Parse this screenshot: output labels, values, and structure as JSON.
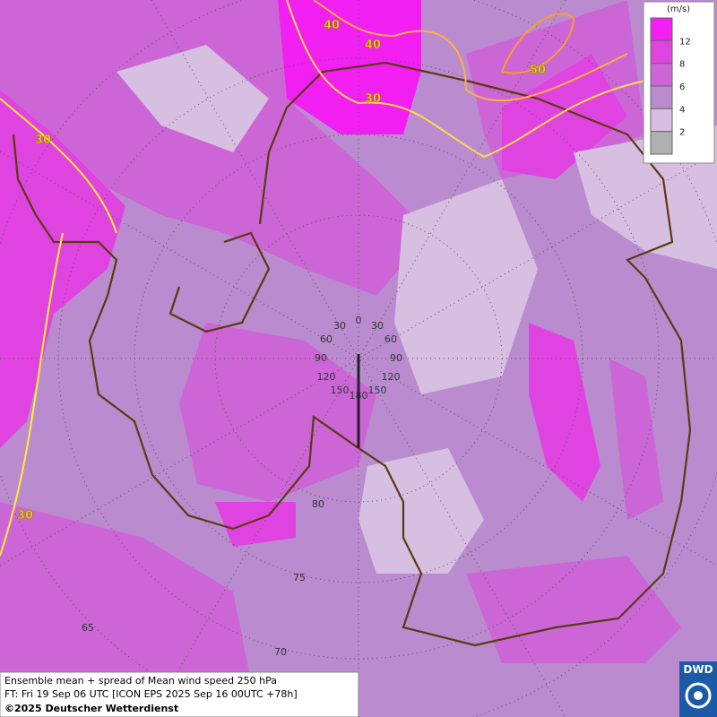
{
  "legend": {
    "unit": "(m/s)",
    "top_color": "#f21ff2",
    "levels": [
      {
        "value": 12,
        "color": "#e044e0"
      },
      {
        "value": 8,
        "color": "#cc66d6"
      },
      {
        "value": 6,
        "color": "#bb8bd0"
      },
      {
        "value": 4,
        "color": "#d6bfe0"
      },
      {
        "value": 2,
        "color": "#b0b0b0"
      }
    ]
  },
  "contour_labels": [
    40,
    40,
    50,
    30,
    30,
    30
  ],
  "latitude_labels": [
    80,
    75,
    70,
    65
  ],
  "longitude_labels": [
    0,
    30,
    30,
    60,
    60,
    90,
    90,
    120,
    120,
    150,
    150,
    180
  ],
  "footer": {
    "line1": "Ensemble mean + spread of Mean wind speed 250 hPa",
    "line2": "FT: Fri 19 Sep 06 UTC [ICON EPS 2025 Sep 16 00UTC +78h]",
    "copyright": "©2025 Deutscher Wetterdienst"
  },
  "logo": "DWD"
}
